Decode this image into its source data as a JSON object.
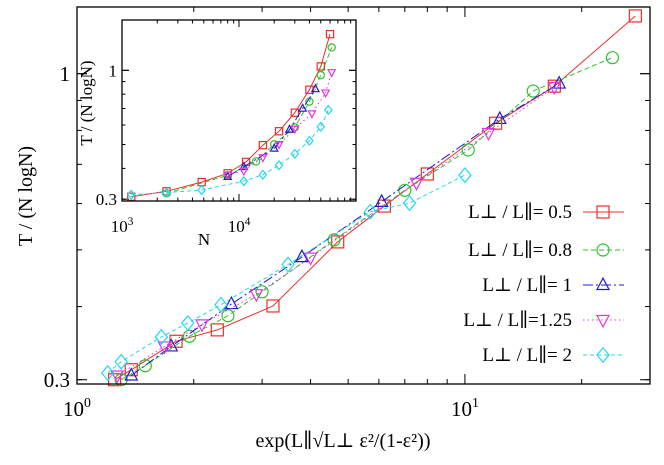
{
  "chart_data": [
    {
      "type": "scatter",
      "scale": "log-log",
      "xlabel": "exp(L∥√L⊥ ε²/(1-ε²))",
      "ylabel": "T / (N logN)",
      "xlim": [
        1.0,
        30.0
      ],
      "ylim": [
        0.295,
        1.3
      ],
      "x_tick_labels": [
        "10",
        "10"
      ],
      "x_tick_label_exponents": [
        "0",
        "1"
      ],
      "y_tick_labels": [
        "0.3",
        "1"
      ],
      "legend_position": "bottom-right",
      "series": [
        {
          "name": "L⊥ / L∥= 0.5",
          "color": "#e8302c",
          "marker": "square",
          "dash": "",
          "x": [
            1.25,
            1.38,
            1.8,
            2.3,
            3.2,
            4.7,
            6.2,
            8.0,
            12.0,
            17.0,
            27.5
          ],
          "y": [
            0.3,
            0.312,
            0.349,
            0.365,
            0.401,
            0.516,
            0.594,
            0.674,
            0.823,
            0.952,
            1.255
          ]
        },
        {
          "name": "L⊥ / L∥= 0.8",
          "color": "#2ec22e",
          "marker": "circle",
          "dash": "5,3",
          "x": [
            1.3,
            1.5,
            1.95,
            2.45,
            3.0,
            4.6,
            7.0,
            10.2,
            15.0,
            24.0
          ],
          "y": [
            0.3,
            0.317,
            0.356,
            0.386,
            0.424,
            0.52,
            0.632,
            0.741,
            0.934,
            1.065
          ]
        },
        {
          "name": "L⊥ / L∥=   1",
          "color": "#1c1ccc",
          "marker": "triangle-up",
          "dash": "10,3,2,3",
          "x": [
            1.38,
            1.75,
            2.5,
            3.8,
            6.1,
            12.3,
            17.5
          ],
          "y": [
            0.305,
            0.342,
            0.404,
            0.486,
            0.604,
            0.837,
            0.962
          ]
        },
        {
          "name": "L⊥ / L∥=1.25",
          "color": "#e433e4",
          "marker": "triangle-down",
          "dash": "1.5,3",
          "x": [
            1.27,
            1.68,
            2.1,
            2.9,
            4.0,
            7.5,
            11.5,
            17.0
          ],
          "y": [
            0.305,
            0.342,
            0.373,
            0.42,
            0.485,
            0.651,
            0.792,
            0.949
          ]
        },
        {
          "name": "L⊥ / L∥=   2",
          "color": "#22d8f0",
          "marker": "diamond",
          "dash": "4,3",
          "x": [
            1.2,
            1.3,
            1.65,
            1.93,
            2.35,
            3.5,
            5.7,
            7.2,
            10.0
          ],
          "y": [
            0.308,
            0.322,
            0.355,
            0.375,
            0.403,
            0.472,
            0.581,
            0.601,
            0.671
          ]
        }
      ]
    },
    {
      "type": "scatter",
      "scale": "log-log",
      "inset": true,
      "xlabel": "N",
      "ylabel": "T / (N logN)",
      "xlim": [
        1000,
        100000
      ],
      "ylim": [
        0.295,
        1.6
      ],
      "x_tick_labels": [
        "10",
        "10"
      ],
      "x_tick_label_exponents": [
        "3",
        "4"
      ],
      "y_tick_labels": [
        "0.3",
        "1"
      ],
      "series": [
        {
          "name": "L⊥ / L∥= 0.5",
          "color": "#e8302c",
          "marker": "square",
          "dash": "",
          "x": [
            1200,
            2400,
            4800,
            8000,
            11500,
            16000,
            22000,
            30000,
            40000,
            50000,
            60000
          ],
          "y": [
            0.307,
            0.323,
            0.352,
            0.382,
            0.425,
            0.497,
            0.566,
            0.673,
            0.834,
            1.037,
            1.402
          ]
        },
        {
          "name": "L⊥ / L∥= 0.8",
          "color": "#2ec22e",
          "marker": "circle",
          "dash": "5,3",
          "x": [
            2400,
            8000,
            14000,
            20000,
            30000,
            40000,
            50000,
            62000
          ],
          "y": [
            0.317,
            0.375,
            0.427,
            0.501,
            0.587,
            0.746,
            0.956,
            1.238
          ]
        },
        {
          "name": "L⊥ / L∥=   1",
          "color": "#1c1ccc",
          "marker": "triangle-up",
          "dash": "10,3,2,3",
          "x": [
            8000,
            11000,
            20000,
            27000,
            35000,
            45000
          ],
          "y": [
            0.37,
            0.406,
            0.482,
            0.575,
            0.7,
            0.84
          ]
        },
        {
          "name": "L⊥ / L∥=1.25",
          "color": "#e433e4",
          "marker": "triangle-down",
          "dash": "1.5,3",
          "x": [
            8000,
            11000,
            16000,
            22000,
            30000,
            42000,
            55000,
            62000
          ],
          "y": [
            0.376,
            0.391,
            0.443,
            0.501,
            0.579,
            0.668,
            0.811,
            0.981
          ]
        },
        {
          "name": "L⊥ / L∥=   2",
          "color": "#22d8f0",
          "marker": "diamond",
          "dash": "4,3",
          "x": [
            1200,
            2400,
            4800,
            11000,
            16000,
            22000,
            30000,
            40000,
            50000,
            58000
          ],
          "y": [
            0.313,
            0.319,
            0.327,
            0.355,
            0.377,
            0.412,
            0.458,
            0.518,
            0.59,
            0.69
          ]
        }
      ]
    }
  ]
}
